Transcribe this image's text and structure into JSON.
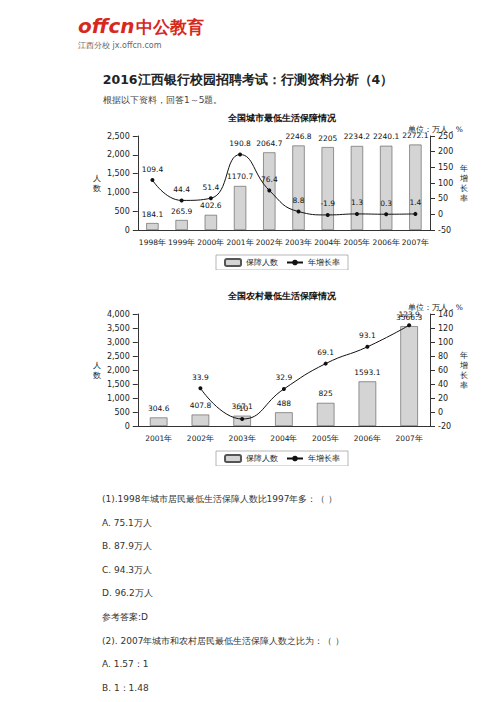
{
  "header": {
    "logo": "offcn",
    "brand": "中公教育",
    "site": "江西分校 jx.offcn.com"
  },
  "title": "2016江西银行校园招聘考试：行测资料分析（4）",
  "intro": "根据以下资料，回答1～5题。",
  "chart_data": [
    {
      "type": "bar",
      "title": "全国城市最低生活保障情况",
      "subtitle": "单位：万人，%",
      "categories": [
        "1998年",
        "1999年",
        "2000年",
        "2001年",
        "2002年",
        "2003年",
        "2004年",
        "2005年",
        "2006年",
        "2007年"
      ],
      "series": [
        {
          "name": "保障人数",
          "type": "bar",
          "color": "#d4d4d4",
          "values": [
            184.1,
            265.9,
            402.6,
            1170.7,
            2064.7,
            2246.8,
            2205,
            2234.2,
            2240.1,
            2272.1
          ]
        },
        {
          "name": "年增长率",
          "type": "line",
          "axis": "y2",
          "color": "#111111",
          "marker": "circle",
          "line_style": "smooth",
          "values": [
            109.4,
            44.4,
            51.4,
            190.8,
            76.4,
            8.8,
            -1.9,
            1.3,
            0.3,
            1.4
          ]
        }
      ],
      "y_label": "人数",
      "y2_label": "年增长率",
      "ylim": [
        0,
        2500
      ],
      "yticks": [
        0,
        500,
        1000,
        1500,
        2000,
        2500
      ],
      "y2lim": [
        -50,
        250
      ],
      "y2ticks": [
        -50,
        0,
        50,
        100,
        150,
        200,
        250
      ],
      "grid": false,
      "legend": "bottom",
      "data_labels": true
    },
    {
      "type": "bar",
      "title": "全国农村最低生活保障情况",
      "subtitle": "单位：万人，%",
      "categories": [
        "2001年",
        "2002年",
        "2003年",
        "2004年",
        "2005年",
        "2006年",
        "2007年"
      ],
      "series": [
        {
          "name": "保障人数",
          "type": "bar",
          "color": "#d4d4d4",
          "values": [
            304.6,
            407.8,
            367.1,
            488,
            825,
            1593.1,
            3566.3
          ]
        },
        {
          "name": "年增长率",
          "type": "line",
          "axis": "y2",
          "color": "#111111",
          "marker": "circle",
          "line_style": "smooth",
          "values": [
            null,
            33.9,
            -10,
            32.9,
            69.1,
            93.1,
            123.9
          ]
        }
      ],
      "y_label": "人数",
      "y2_label": "年增长率",
      "ylim": [
        0,
        4000
      ],
      "yticks": [
        0,
        500,
        1000,
        1500,
        2000,
        2500,
        3000,
        3500,
        4000
      ],
      "y2lim": [
        -20,
        140
      ],
      "y2ticks": [
        -20,
        0,
        20,
        40,
        60,
        80,
        100,
        120,
        140
      ],
      "grid": false,
      "legend": "bottom",
      "data_labels": true
    }
  ],
  "questions": [
    {
      "stem": "(1).1998年城市居民最低生活保障人数比1997年多：（ ）",
      "options": [
        "A. 75.1万人",
        "B. 87.9万人",
        "C. 94.3万人",
        "D. 96.2万人"
      ],
      "answer": "参考答案:D"
    },
    {
      "stem": "(2). 2007年城市和农村居民最低生活保障人数之比为：（ ）",
      "options": [
        "A. 1.57：1",
        "B. 1：1.48"
      ]
    }
  ]
}
